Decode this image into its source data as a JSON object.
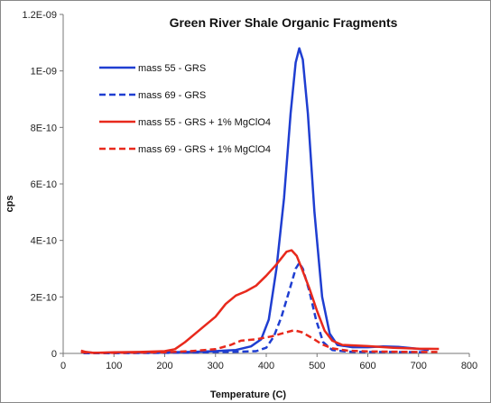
{
  "chart_data": {
    "type": "line",
    "title": "Green River Shale Organic Fragments",
    "xlabel": "Temperature (C)",
    "ylabel": "cps",
    "xlim": [
      0,
      800
    ],
    "ylim": [
      0,
      1.2e-09
    ],
    "x_ticks": [
      0,
      100,
      200,
      300,
      400,
      500,
      600,
      700,
      800
    ],
    "y_ticks": [
      0,
      2e-10,
      4e-10,
      6e-10,
      8e-10,
      1e-09,
      1.2e-09
    ],
    "x_tick_labels": [
      "0",
      "100",
      "200",
      "300",
      "400",
      "500",
      "600",
      "700",
      "800"
    ],
    "y_tick_labels": [
      "0",
      "2E-10",
      "4E-10",
      "6E-10",
      "8E-10",
      "1E-09",
      "1.2E-09"
    ],
    "grid": false,
    "legend_position": "upper-left",
    "series": [
      {
        "name": "mass 55 - GRS",
        "color": "#1f3ed1",
        "dash": "solid",
        "points": [
          [
            40,
            5e-12
          ],
          [
            60,
            2e-12
          ],
          [
            100,
            3e-12
          ],
          [
            150,
            3e-12
          ],
          [
            200,
            4e-12
          ],
          [
            250,
            5e-12
          ],
          [
            300,
            8e-12
          ],
          [
            340,
            1.2e-11
          ],
          [
            370,
            2.5e-11
          ],
          [
            390,
            5e-11
          ],
          [
            405,
            1.2e-10
          ],
          [
            420,
            3e-10
          ],
          [
            435,
            5.5e-10
          ],
          [
            448,
            8.5e-10
          ],
          [
            458,
            1.03e-09
          ],
          [
            465,
            1.08e-09
          ],
          [
            472,
            1.04e-09
          ],
          [
            482,
            8.5e-10
          ],
          [
            495,
            5e-10
          ],
          [
            510,
            2e-10
          ],
          [
            525,
            7e-11
          ],
          [
            540,
            3e-11
          ],
          [
            570,
            2.2e-11
          ],
          [
            600,
            2.2e-11
          ],
          [
            630,
            2.5e-11
          ],
          [
            660,
            2.3e-11
          ],
          [
            690,
            1.8e-11
          ],
          [
            720,
            1.2e-11
          ]
        ]
      },
      {
        "name": "mass 69 - GRS",
        "color": "#1f3ed1",
        "dash": "dashed",
        "points": [
          [
            40,
            1e-12
          ],
          [
            100,
            1e-12
          ],
          [
            200,
            2e-12
          ],
          [
            250,
            3e-12
          ],
          [
            300,
            5e-12
          ],
          [
            350,
            6e-12
          ],
          [
            380,
            8e-12
          ],
          [
            400,
            2e-11
          ],
          [
            415,
            6e-11
          ],
          [
            430,
            1.3e-10
          ],
          [
            445,
            2.2e-10
          ],
          [
            458,
            3e-10
          ],
          [
            465,
            3.2e-10
          ],
          [
            472,
            3e-10
          ],
          [
            485,
            2.2e-10
          ],
          [
            498,
            1.2e-10
          ],
          [
            512,
            4e-11
          ],
          [
            530,
            1.2e-11
          ],
          [
            560,
            6e-12
          ],
          [
            600,
            5e-12
          ],
          [
            650,
            5e-12
          ],
          [
            720,
            4e-12
          ]
        ]
      },
      {
        "name": "mass 55 - GRS + 1% MgClO4",
        "color": "#e8291c",
        "dash": "solid",
        "points": [
          [
            35,
            1e-11
          ],
          [
            45,
            5e-12
          ],
          [
            60,
            2e-12
          ],
          [
            100,
            4e-12
          ],
          [
            150,
            5e-12
          ],
          [
            200,
            8e-12
          ],
          [
            220,
            1.5e-11
          ],
          [
            240,
            4e-11
          ],
          [
            260,
            7e-11
          ],
          [
            280,
            1e-10
          ],
          [
            300,
            1.3e-10
          ],
          [
            320,
            1.75e-10
          ],
          [
            340,
            2.05e-10
          ],
          [
            360,
            2.2e-10
          ],
          [
            380,
            2.4e-10
          ],
          [
            400,
            2.75e-10
          ],
          [
            420,
            3.15e-10
          ],
          [
            440,
            3.6e-10
          ],
          [
            450,
            3.65e-10
          ],
          [
            460,
            3.45e-10
          ],
          [
            470,
            3e-10
          ],
          [
            485,
            2.3e-10
          ],
          [
            500,
            1.5e-10
          ],
          [
            515,
            8e-11
          ],
          [
            530,
            4.5e-11
          ],
          [
            550,
            3e-11
          ],
          [
            600,
            2.6e-11
          ],
          [
            650,
            2e-11
          ],
          [
            700,
            1.7e-11
          ],
          [
            740,
            1.6e-11
          ]
        ]
      },
      {
        "name": "mass 69 - GRS + 1% MgClO4",
        "color": "#e8291c",
        "dash": "dashed",
        "points": [
          [
            35,
            5e-12
          ],
          [
            50,
            2e-12
          ],
          [
            100,
            2e-12
          ],
          [
            200,
            4e-12
          ],
          [
            250,
            8e-12
          ],
          [
            300,
            1.5e-11
          ],
          [
            330,
            3e-11
          ],
          [
            350,
            4.5e-11
          ],
          [
            380,
            5e-11
          ],
          [
            410,
            6e-11
          ],
          [
            440,
            7.5e-11
          ],
          [
            455,
            8.2e-11
          ],
          [
            470,
            7.5e-11
          ],
          [
            490,
            5.5e-11
          ],
          [
            510,
            3.2e-11
          ],
          [
            530,
            1.8e-11
          ],
          [
            560,
            1e-11
          ],
          [
            600,
            7e-12
          ],
          [
            650,
            6e-12
          ],
          [
            700,
            5e-12
          ],
          [
            740,
            5e-12
          ]
        ]
      }
    ]
  }
}
